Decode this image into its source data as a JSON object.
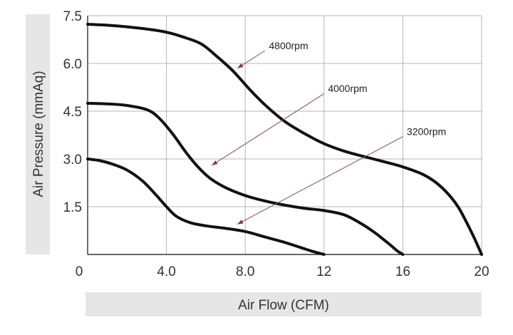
{
  "chart_data": {
    "type": "line",
    "xlabel": "Air Flow (CFM)",
    "ylabel": "Air Pressure (mmAq)",
    "xlim": [
      0,
      20
    ],
    "ylim": [
      0,
      7.5
    ],
    "grid": true,
    "x_ticks": [
      {
        "value": 0,
        "label": "0"
      },
      {
        "value": 4,
        "label": "4.0"
      },
      {
        "value": 8,
        "label": "8.0"
      },
      {
        "value": 12,
        "label": "12"
      },
      {
        "value": 16,
        "label": "16"
      },
      {
        "value": 20,
        "label": "20"
      }
    ],
    "y_ticks": [
      {
        "value": 1.5,
        "label": "1.5"
      },
      {
        "value": 3.0,
        "label": "3.0"
      },
      {
        "value": 4.5,
        "label": "4.5"
      },
      {
        "value": 6.0,
        "label": "6.0"
      },
      {
        "value": 7.5,
        "label": "7.5"
      }
    ],
    "series": [
      {
        "x": [
          0,
          1,
          2,
          3,
          4,
          5,
          5.8,
          6.6,
          7.4,
          8.2,
          9,
          10,
          11,
          12,
          13,
          14,
          15,
          16,
          17,
          17.7,
          18.3,
          18.8,
          19.2,
          19.6,
          20
        ],
        "y": [
          7.23,
          7.2,
          7.15,
          7.08,
          6.98,
          6.8,
          6.6,
          6.2,
          5.75,
          5.2,
          4.7,
          4.18,
          3.8,
          3.48,
          3.25,
          3.08,
          2.92,
          2.75,
          2.52,
          2.25,
          1.9,
          1.5,
          1.05,
          0.55,
          0
        ]
      },
      {
        "x": [
          0,
          1,
          2,
          3,
          3.6,
          4.3,
          5,
          5.6,
          6.2,
          7,
          8,
          9,
          10,
          11,
          12,
          13,
          13.8,
          14.5,
          15,
          15.4,
          15.7,
          16
        ],
        "y": [
          4.75,
          4.73,
          4.68,
          4.55,
          4.3,
          3.8,
          3.2,
          2.75,
          2.4,
          2.1,
          1.85,
          1.68,
          1.55,
          1.45,
          1.38,
          1.25,
          1.0,
          0.72,
          0.48,
          0.28,
          0.12,
          0
        ]
      },
      {
        "x": [
          0,
          0.6,
          1.2,
          2,
          2.8,
          3.5,
          4,
          4.5,
          5.2,
          6,
          7,
          8,
          9,
          10,
          10.8,
          11.4,
          12
        ],
        "y": [
          3.0,
          2.95,
          2.85,
          2.65,
          2.3,
          1.85,
          1.5,
          1.2,
          1.0,
          0.9,
          0.82,
          0.72,
          0.55,
          0.38,
          0.22,
          0.1,
          0
        ]
      }
    ],
    "annotations": [
      {
        "label": "4800rpm",
        "label_x": 9.2,
        "label_y": 6.45,
        "tail_x": 9.0,
        "tail_y": 6.4,
        "tip_x": 7.6,
        "tip_y": 5.85
      },
      {
        "label": "4000rpm",
        "label_x": 12.2,
        "label_y": 5.1,
        "tail_x": 12.0,
        "tail_y": 5.05,
        "tip_x": 6.3,
        "tip_y": 2.8
      },
      {
        "label": "3200rpm",
        "label_x": 16.2,
        "label_y": 3.75,
        "tail_x": 16.0,
        "tail_y": 3.7,
        "tip_x": 7.6,
        "tip_y": 0.95
      }
    ]
  }
}
